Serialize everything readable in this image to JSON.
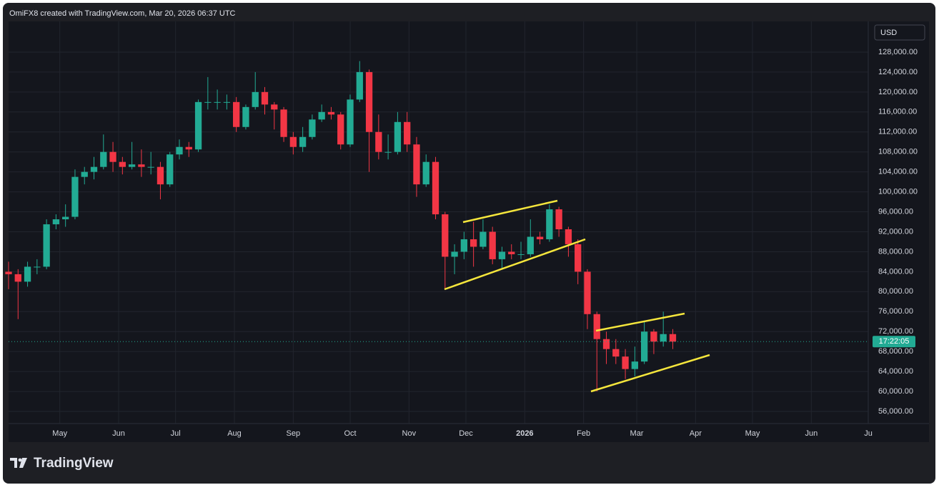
{
  "header": {
    "text": "OmiFX8 created with TradingView.com, Mar 20, 2026 06:37 UTC"
  },
  "chart_data": {
    "type": "candlestick",
    "x": [
      0,
      5,
      10,
      15,
      20,
      25,
      30,
      35,
      40,
      45,
      50,
      55,
      60,
      65,
      70,
      75,
      80,
      85,
      90,
      95,
      100,
      105,
      110,
      115,
      120,
      125,
      130,
      135,
      140,
      145,
      150,
      155,
      160,
      165,
      170,
      175,
      180,
      185,
      190,
      195,
      200,
      205,
      210,
      215,
      220,
      225,
      230,
      235,
      240,
      245,
      250,
      255,
      260,
      265,
      270,
      275,
      280,
      285,
      290,
      295,
      300,
      305,
      310,
      315,
      320,
      325,
      330,
      335,
      340,
      345,
      350
    ],
    "open": [
      84000,
      83500,
      82000,
      85000,
      85000,
      93500,
      94500,
      95000,
      103000,
      104000,
      105000,
      108000,
      106000,
      105000,
      105500,
      105000,
      105000,
      101500,
      107500,
      109000,
      108500,
      118000,
      118000,
      118000,
      118000,
      113000,
      117000,
      120000,
      117500,
      116500,
      111000,
      109000,
      111000,
      114500,
      116000,
      115500,
      109500,
      118500,
      124000,
      112000,
      108000,
      108000,
      114000,
      109500,
      101500,
      106000,
      95500,
      87000,
      88000,
      90500,
      89000,
      92000,
      86500,
      88000,
      87500,
      87500,
      91000,
      90500,
      96500,
      92500,
      89500,
      84000,
      75500,
      70500,
      68500,
      67000,
      64500,
      66000,
      72000,
      70000,
      71500
    ],
    "high": [
      86000,
      84500,
      86000,
      86500,
      94500,
      95500,
      97500,
      104500,
      105000,
      107000,
      111500,
      110000,
      107000,
      110000,
      108500,
      108000,
      106000,
      108000,
      110500,
      110000,
      118500,
      123000,
      120500,
      119500,
      119000,
      117500,
      124000,
      121000,
      118000,
      117000,
      112000,
      113000,
      115500,
      117500,
      117000,
      116000,
      119500,
      126200,
      124500,
      115500,
      111500,
      116000,
      116000,
      111000,
      107500,
      107000,
      96000,
      89500,
      92000,
      94000,
      94500,
      93000,
      89000,
      89500,
      90000,
      94500,
      92000,
      97500,
      97000,
      93000,
      90500,
      84500,
      76000,
      72000,
      70500,
      68500,
      69000,
      74000,
      72500,
      76000,
      72500
    ],
    "low": [
      80500,
      74500,
      81000,
      83500,
      84500,
      92500,
      93000,
      94500,
      101500,
      102500,
      104500,
      104000,
      103500,
      104500,
      103000,
      103500,
      98500,
      101000,
      106500,
      107000,
      108000,
      116500,
      116500,
      116500,
      112000,
      112500,
      116500,
      115500,
      112500,
      110000,
      107500,
      108000,
      110500,
      114000,
      114500,
      108500,
      109000,
      118000,
      104000,
      106500,
      106500,
      107500,
      108000,
      99000,
      101000,
      94500,
      80500,
      83500,
      86500,
      85000,
      88500,
      85500,
      84500,
      86500,
      86500,
      87000,
      89500,
      90000,
      91000,
      87000,
      81500,
      72500,
      60000,
      65500,
      65500,
      62500,
      63000,
      65500,
      67500,
      69000,
      68500
    ],
    "close": [
      83500,
      82000,
      85000,
      85000,
      93500,
      94500,
      95000,
      103000,
      104000,
      105000,
      108000,
      106000,
      105000,
      105500,
      105000,
      105000,
      101500,
      107500,
      109000,
      108500,
      118000,
      118000,
      118000,
      118000,
      113000,
      117000,
      120000,
      117500,
      116500,
      111000,
      109000,
      111000,
      114500,
      116000,
      115500,
      109500,
      118500,
      124000,
      112000,
      108000,
      108000,
      114000,
      109500,
      101500,
      106000,
      95500,
      87000,
      88000,
      90500,
      89000,
      92000,
      86500,
      88000,
      87500,
      87500,
      91000,
      90500,
      96500,
      92500,
      89500,
      84000,
      75500,
      70500,
      68500,
      67000,
      64500,
      66000,
      72000,
      70000,
      71500,
      70000
    ],
    "up_color": "#22ab94",
    "down_color": "#f23645",
    "xlim": [
      0,
      453
    ],
    "xticks": [
      {
        "value": 27,
        "label": "May"
      },
      {
        "value": 58,
        "label": "Jun"
      },
      {
        "value": 88,
        "label": "Jul"
      },
      {
        "value": 119,
        "label": "Aug"
      },
      {
        "value": 150,
        "label": "Sep"
      },
      {
        "value": 180,
        "label": "Oct"
      },
      {
        "value": 211,
        "label": "Nov"
      },
      {
        "value": 241,
        "label": "Dec"
      },
      {
        "value": 272,
        "label": "2026"
      },
      {
        "value": 303,
        "label": "Feb"
      },
      {
        "value": 331,
        "label": "Mar"
      },
      {
        "value": 362,
        "label": "Apr"
      },
      {
        "value": 392,
        "label": "May"
      },
      {
        "value": 423,
        "label": "Jun"
      },
      {
        "value": 453,
        "label": "Ju"
      }
    ],
    "ylim": [
      53570,
      134150
    ],
    "yticks": [
      {
        "value": 56000,
        "label": "56,000.00"
      },
      {
        "value": 60000,
        "label": "60,000.00"
      },
      {
        "value": 64000,
        "label": "64,000.00"
      },
      {
        "value": 68000,
        "label": "68,000.00"
      },
      {
        "value": 72000,
        "label": "72,000.00"
      },
      {
        "value": 76000,
        "label": "76,000.00"
      },
      {
        "value": 80000,
        "label": "80,000.00"
      },
      {
        "value": 84000,
        "label": "84,000.00"
      },
      {
        "value": 88000,
        "label": "88,000.00"
      },
      {
        "value": 92000,
        "label": "92,000.00"
      },
      {
        "value": 96000,
        "label": "96,000.00"
      },
      {
        "value": 100000,
        "label": "100,000.00"
      },
      {
        "value": 104000,
        "label": "104,000.00"
      },
      {
        "value": 108000,
        "label": "108,000.00"
      },
      {
        "value": 112000,
        "label": "112,000.00"
      },
      {
        "value": 116000,
        "label": "116,000.00"
      },
      {
        "value": 120000,
        "label": "120,000.00"
      },
      {
        "value": 124000,
        "label": "124,000.00"
      },
      {
        "value": 128000,
        "label": "128,000.00"
      }
    ],
    "grid": true,
    "currency": "USD",
    "countdown": "17:22:05"
  },
  "footer": {
    "brand": "TradingView"
  }
}
